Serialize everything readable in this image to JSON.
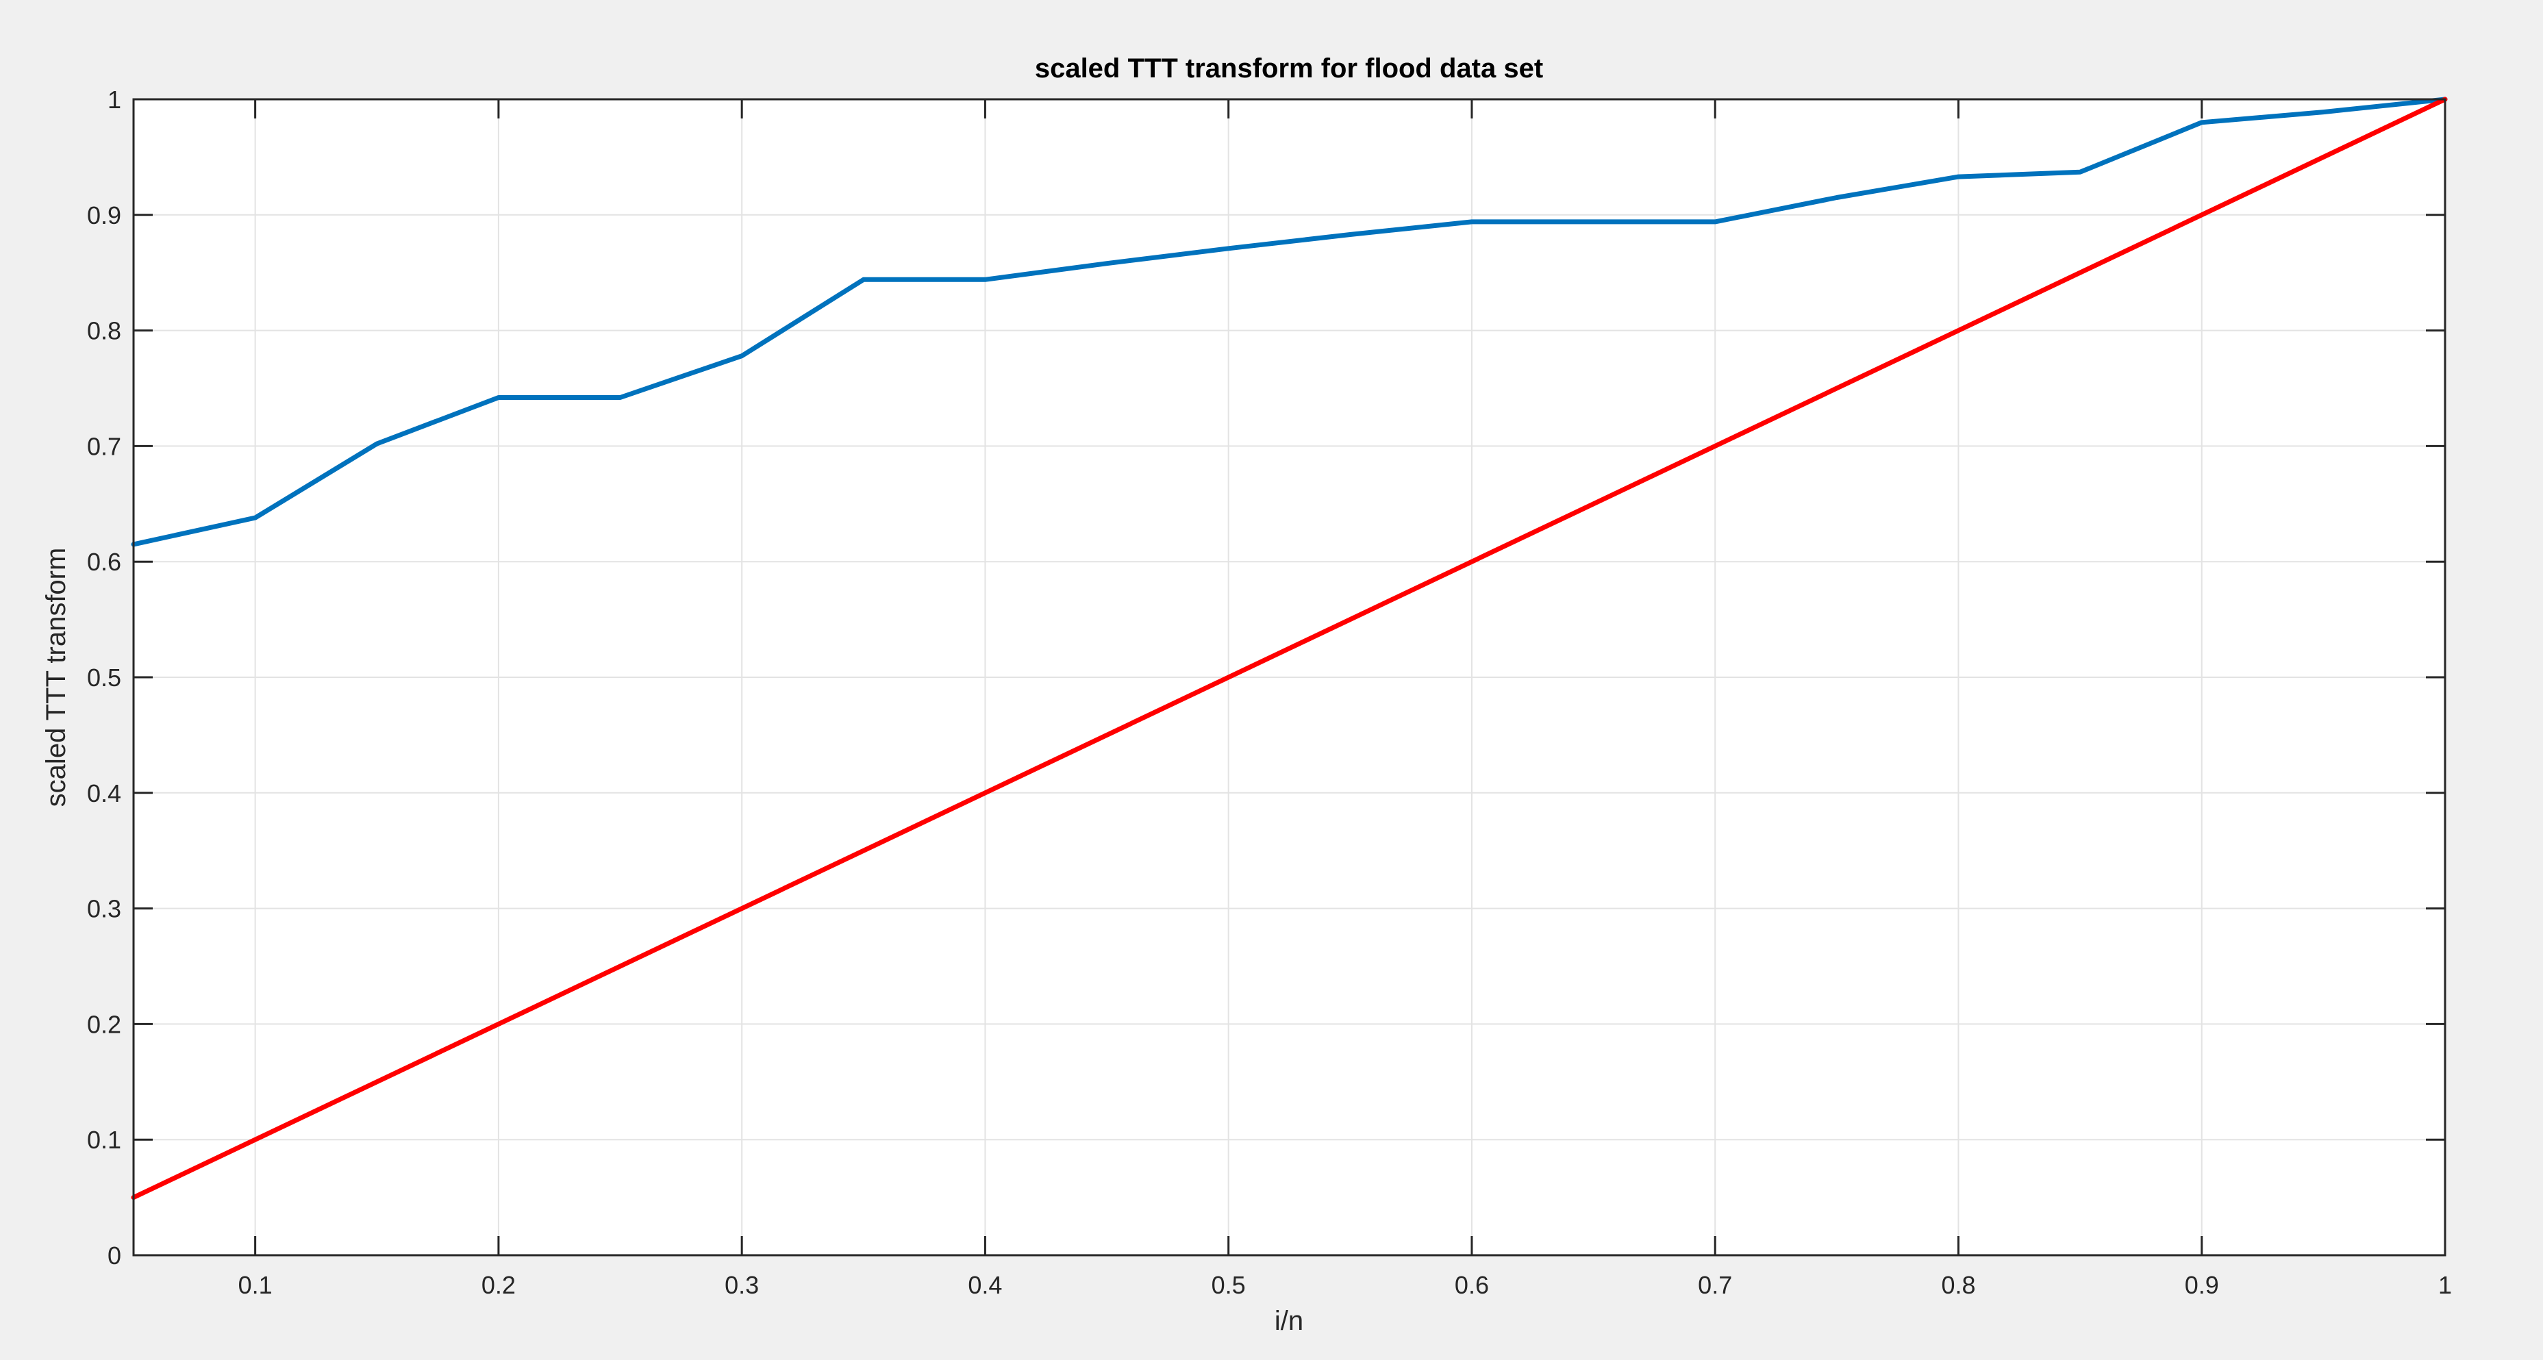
{
  "chart_data": {
    "type": "line",
    "title": "scaled TTT transform for flood data set",
    "xlabel": "i/n",
    "ylabel": "scaled TTT transform",
    "xlim": [
      0.05,
      1
    ],
    "ylim": [
      0,
      1
    ],
    "grid": true,
    "legend": "none",
    "x_ticks": [
      "0.1",
      "0.2",
      "0.3",
      "0.4",
      "0.5",
      "0.6",
      "0.7",
      "0.8",
      "0.9",
      "1"
    ],
    "y_ticks": [
      "0",
      "0.1",
      "0.2",
      "0.3",
      "0.4",
      "0.5",
      "0.6",
      "0.7",
      "0.8",
      "0.9",
      "1"
    ],
    "series": [
      {
        "color": "#0072bd",
        "x": [
          0.05,
          0.1,
          0.15,
          0.2,
          0.25,
          0.3,
          0.35,
          0.4,
          0.45,
          0.5,
          0.55,
          0.6,
          0.65,
          0.7,
          0.75,
          0.8,
          0.85,
          0.9,
          0.95,
          1.0
        ],
        "y": [
          0.615,
          0.638,
          0.702,
          0.742,
          0.742,
          0.778,
          0.844,
          0.844,
          0.858,
          0.871,
          0.883,
          0.894,
          0.894,
          0.894,
          0.915,
          0.933,
          0.937,
          0.98,
          0.989,
          1.0
        ]
      },
      {
        "color": "#ff0000",
        "x": [
          0.05,
          1.0
        ],
        "y": [
          0.05,
          1.0
        ]
      }
    ]
  }
}
